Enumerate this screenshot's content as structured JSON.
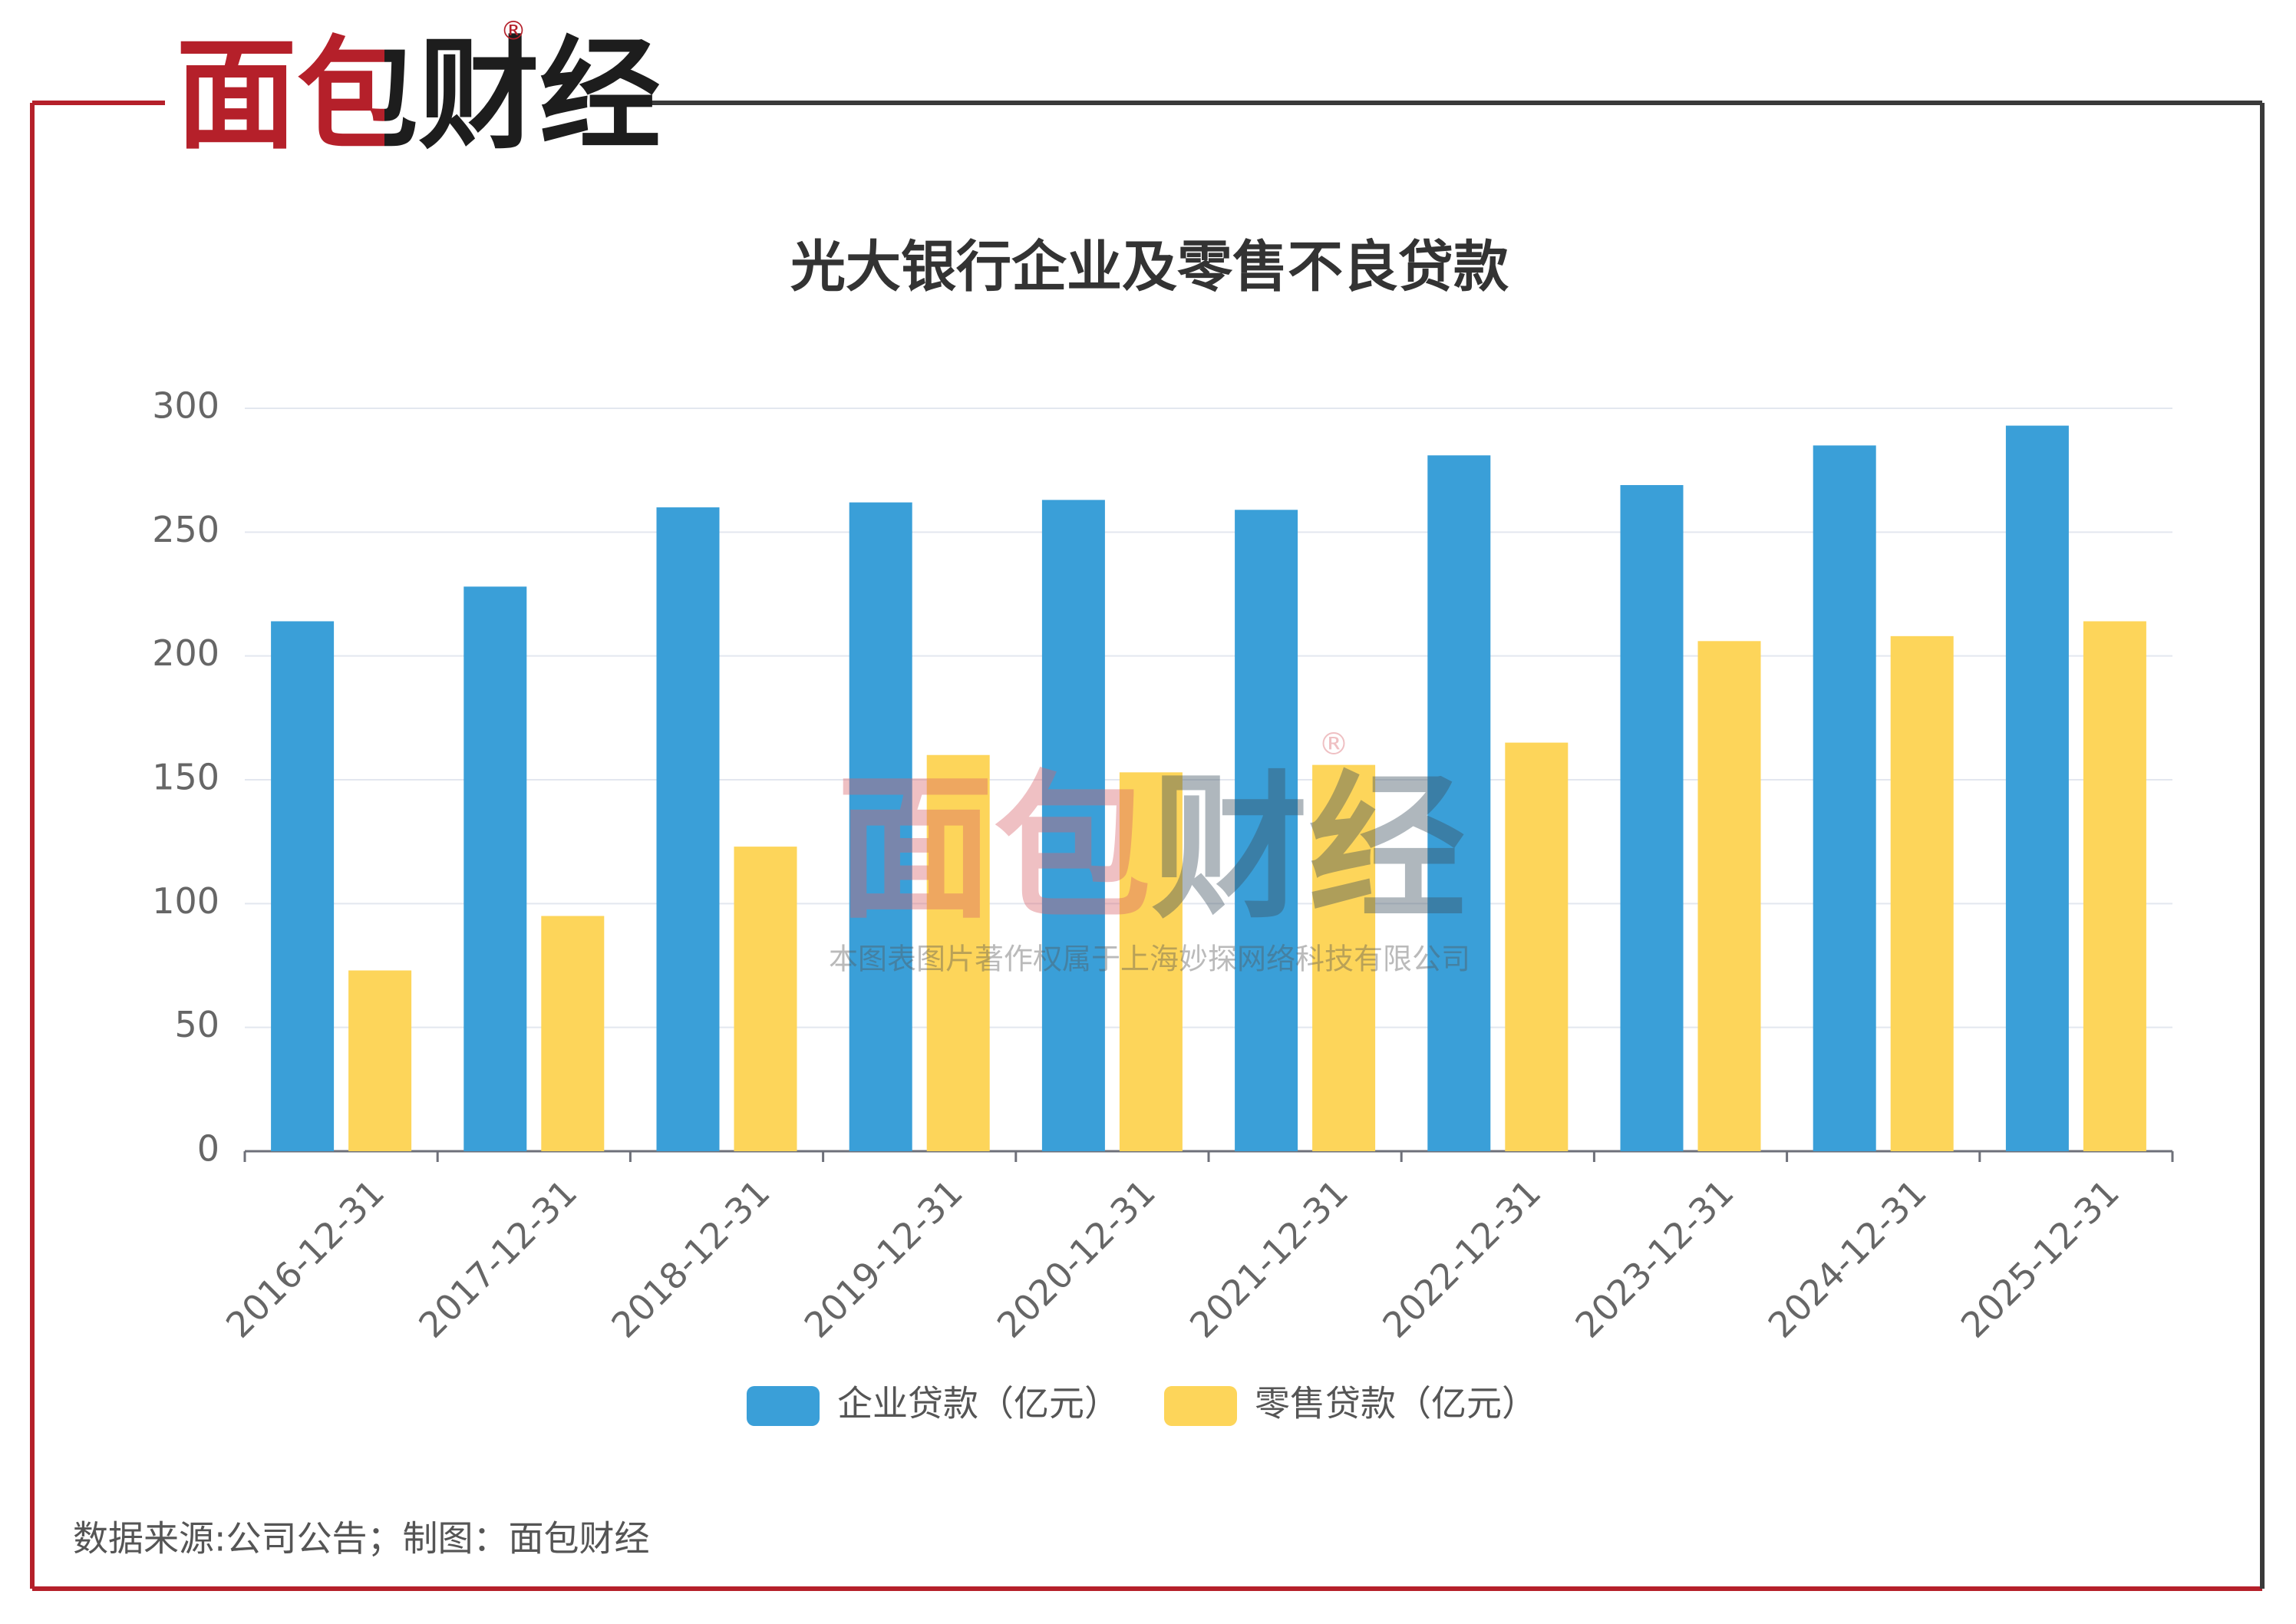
{
  "logo": "面包财经",
  "logo_mark": "®",
  "watermark": {
    "logo": "面包财经",
    "mark": "®",
    "text": "本图表图片著作权属于上海妙探网络科技有限公司"
  },
  "source": "数据来源:公司公告；制图：面包财经",
  "chart_data": {
    "type": "bar",
    "title": "光大银行企业及零售不良贷款",
    "categories": [
      "2016-12-31",
      "2017-12-31",
      "2018-12-31",
      "2019-12-31",
      "2020-12-31",
      "2021-12-31",
      "2022-12-31",
      "2023-12-31",
      "2024-12-31",
      "2025-12-31"
    ],
    "series": [
      {
        "name": "企业贷款（亿元）",
        "color": "#3a9fd8",
        "values": [
          214,
          228,
          260,
          262,
          263,
          259,
          281,
          269,
          285,
          293
        ]
      },
      {
        "name": "零售贷款（亿元）",
        "color": "#fdd55a",
        "values": [
          73,
          95,
          123,
          160,
          153,
          156,
          165,
          206,
          208,
          214
        ]
      }
    ],
    "ylim": [
      0,
      300
    ],
    "yticks": [
      0,
      50,
      100,
      150,
      200,
      250,
      300
    ],
    "grid": true,
    "legend": "bottom"
  }
}
